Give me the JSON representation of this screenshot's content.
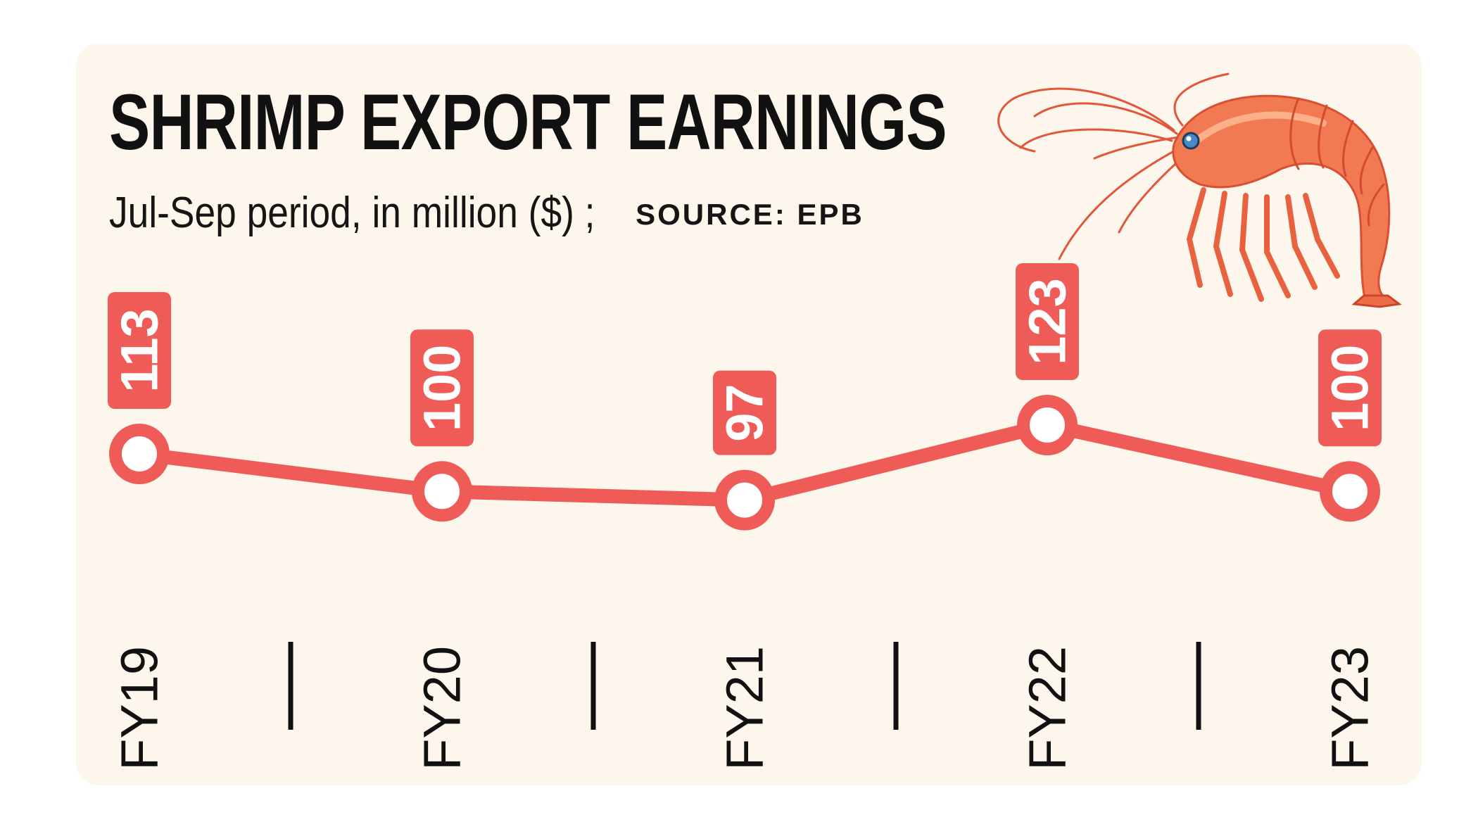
{
  "title": "SHRIMP EXPORT EARNINGS",
  "subtitle": "Jul-Sep period, in million ($) ;",
  "source": "SOURCE: EPB",
  "colors": {
    "background": "#fdf6ec",
    "line": "#ef5b56",
    "marker_fill": "#ffffff",
    "text": "#111111"
  },
  "decoration": "shrimp-illustration",
  "chart_data": {
    "type": "line",
    "title": "SHRIMP EXPORT EARNINGS",
    "subtitle": "Jul-Sep period, in million ($)",
    "categories": [
      "FY19",
      "FY20",
      "FY21",
      "FY22",
      "FY23"
    ],
    "values": [
      113,
      100,
      97,
      123,
      100
    ],
    "data_labels": [
      "113",
      "100",
      "97",
      "123",
      "100"
    ],
    "xlabel": "",
    "ylabel": "",
    "ylim": [
      60,
      140
    ],
    "grid": false,
    "legend": "none",
    "source": "SOURCE: EPB"
  }
}
